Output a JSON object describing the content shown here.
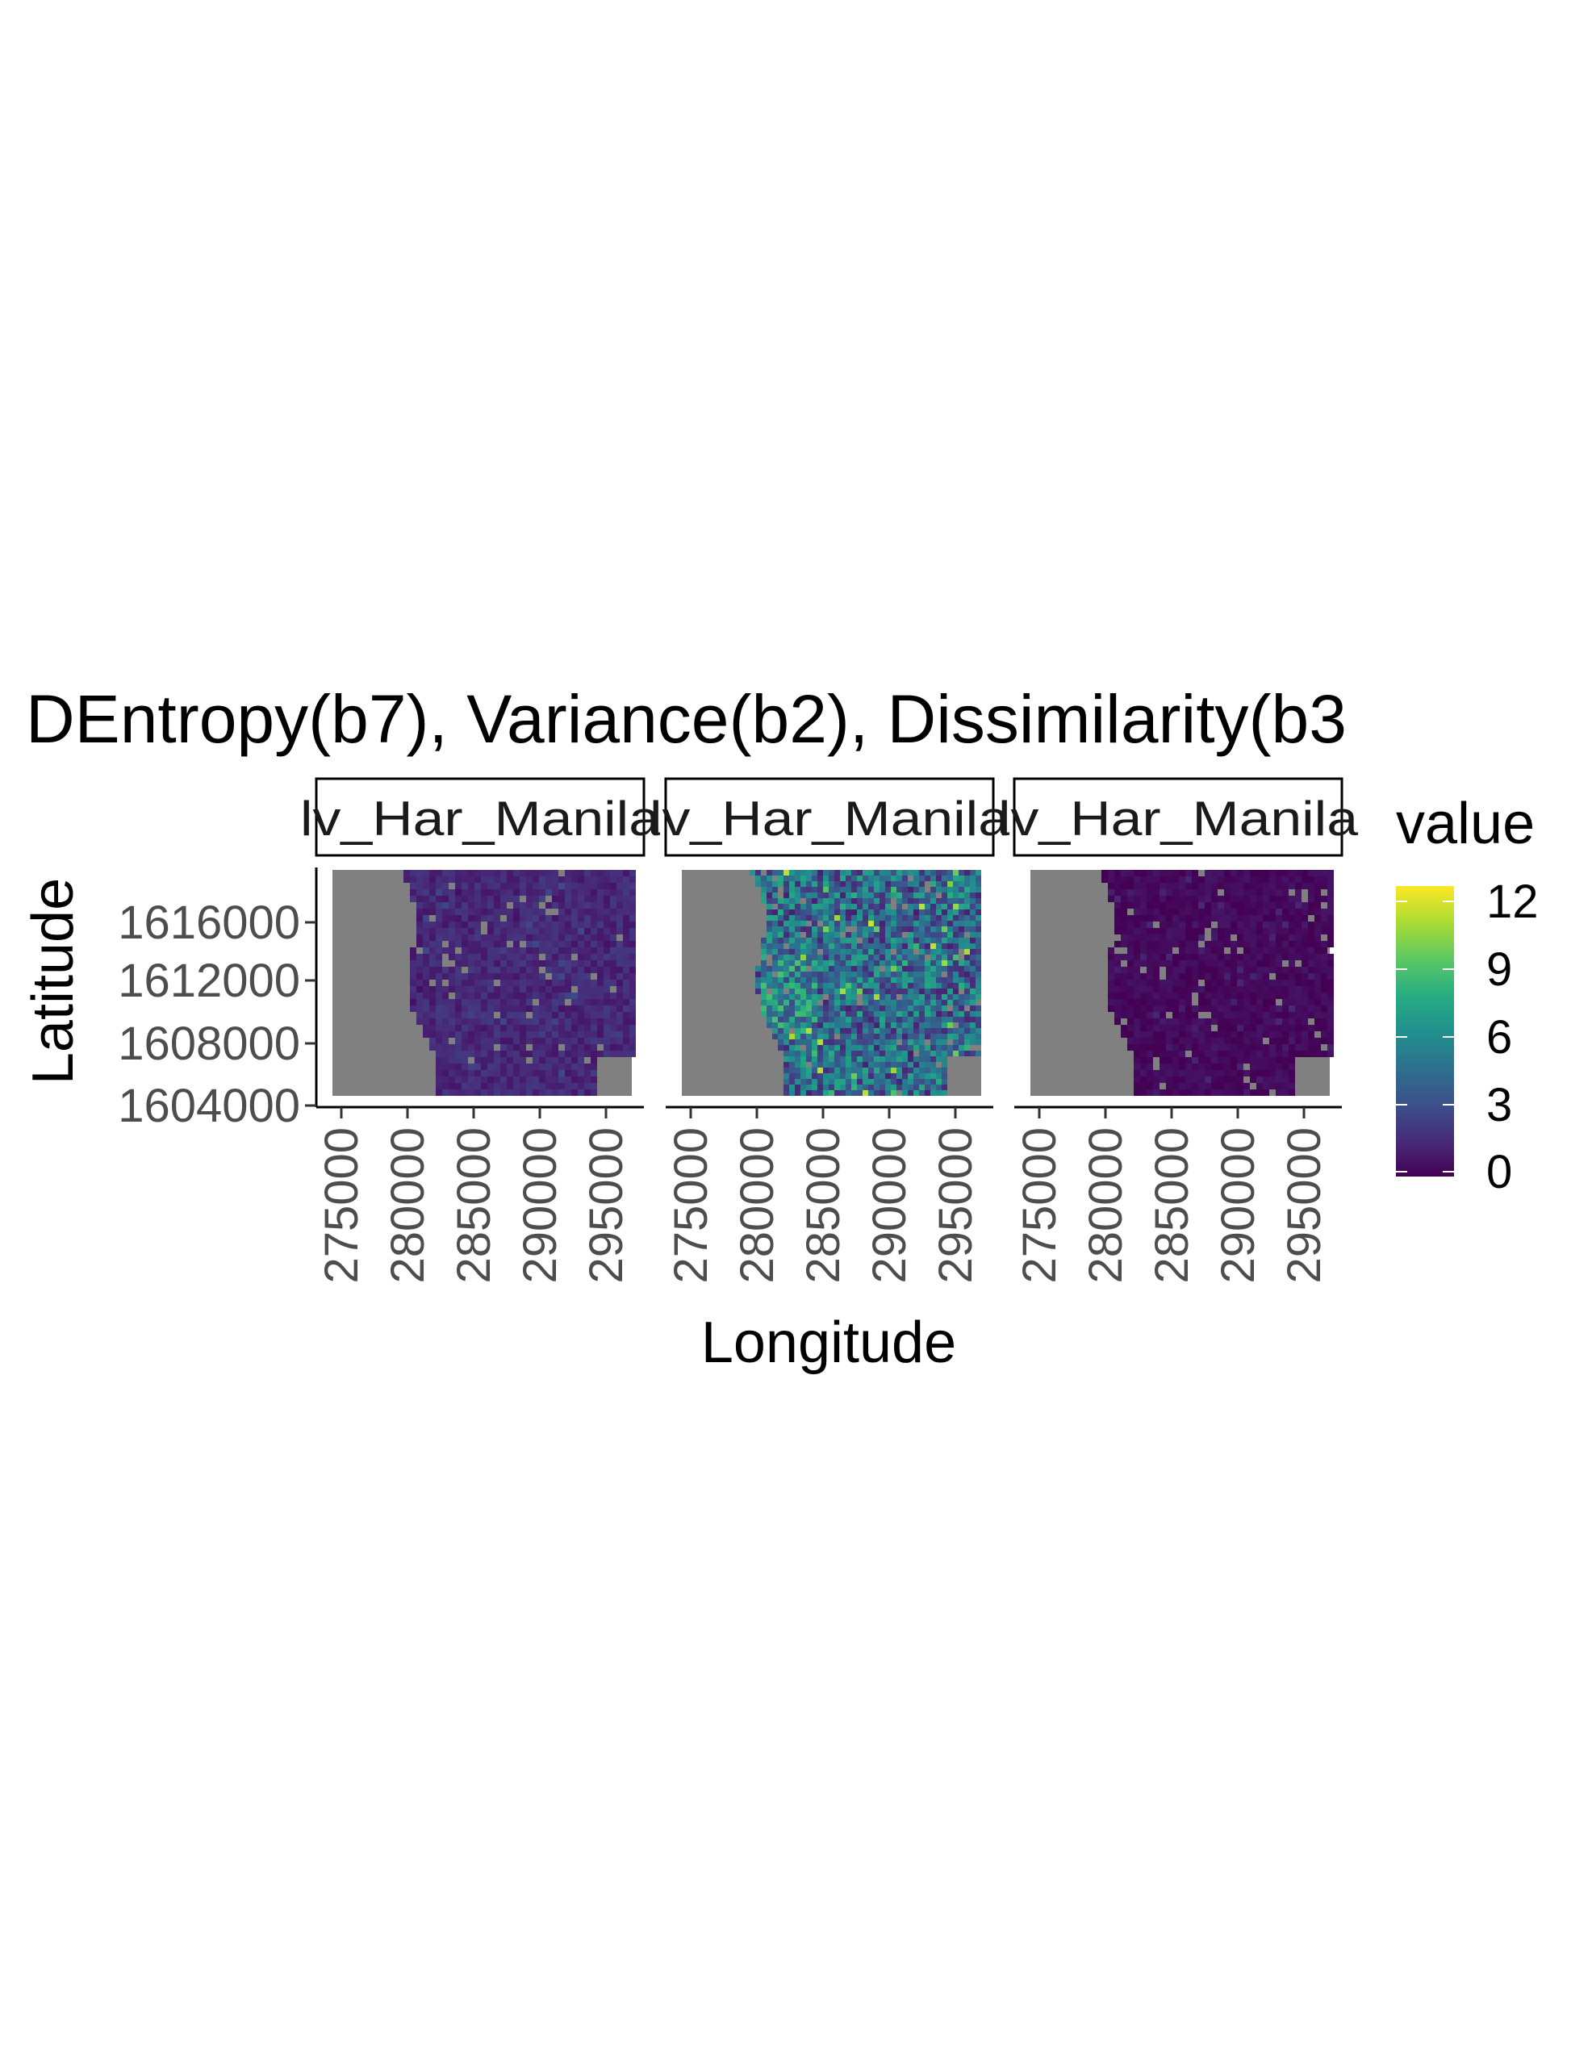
{
  "chart_data": {
    "type": "heatmap",
    "title": "DEntropy(b7), Variance(b2), Dissimilarity(b3",
    "xlabel": "Longitude",
    "ylabel": "Latitude",
    "x_ticks": [
      "275000",
      "280000",
      "285000",
      "290000",
      "295000"
    ],
    "y_ticks": [
      "1616000",
      "1612000",
      "1608000",
      "1604000"
    ],
    "xlim": [
      273000,
      295800
    ],
    "ylim": [
      1603800,
      1620200
    ],
    "legend": {
      "title": "value",
      "ticks": [
        "12",
        "9",
        "6",
        "3",
        "0"
      ],
      "range": [
        0,
        13
      ],
      "position": "right",
      "palette": [
        "#440154",
        "#472c7a",
        "#3b518b",
        "#2c718e",
        "#21908d",
        "#27ad81",
        "#5cc863",
        "#aadc32",
        "#fde725"
      ]
    },
    "no_data_color": "#808080",
    "panels": [
      {
        "strip": "lv_Har_Manila",
        "typical_value": 1.5,
        "value_range": [
          0.5,
          3
        ]
      },
      {
        "strip": "lv_Har_Manila",
        "typical_value": 4.5,
        "value_range": [
          1,
          12
        ]
      },
      {
        "strip": "lv_Har_Manila",
        "typical_value": 0.3,
        "value_range": [
          0,
          1.5
        ]
      }
    ]
  }
}
